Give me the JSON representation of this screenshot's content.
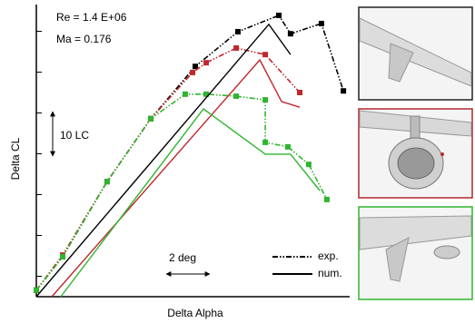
{
  "chart_data": {
    "type": "line",
    "x_label": "Delta Alpha",
    "y_label": "Delta CL",
    "annotations": [
      "Re = 1.4 E+06",
      "Ma = 0.176"
    ],
    "scale_bars": {
      "y": "10 LC",
      "x": "2 deg"
    },
    "xlim": [
      0,
      14.8
    ],
    "ylim": [
      0,
      70
    ],
    "yticks": [
      5,
      15,
      25,
      35,
      45,
      55,
      65
    ],
    "legend": [
      {
        "label": "exp.",
        "style": "exp"
      },
      {
        "label": "num.",
        "style": "num"
      }
    ],
    "series": [
      {
        "style": "exp",
        "color": "#000000",
        "marker": "square",
        "x": [
          0,
          1.26,
          3.39,
          5.48,
          7.61,
          9.65,
          11.61,
          12.17,
          13.65,
          14.7
        ],
        "values": [
          1.6,
          9.8,
          28.2,
          43.6,
          56.4,
          64.9,
          68.9,
          64.4,
          66.9,
          50.4
        ]
      },
      {
        "style": "exp",
        "color": "#c0282d",
        "marker": "square",
        "x": [
          0,
          1.26,
          3.39,
          5.48,
          7.48,
          8.13,
          9.57,
          10.96,
          12.61
        ],
        "values": [
          1.6,
          10.2,
          28.2,
          43.6,
          54.9,
          57.3,
          60.9,
          59.3,
          50
        ]
      },
      {
        "style": "exp",
        "color": "#2fb52f",
        "marker": "square",
        "x": [
          0,
          1.26,
          3.39,
          5.48,
          7.13,
          8.13,
          9.57,
          10.96,
          10.96,
          12.04,
          13.04,
          13.91
        ],
        "values": [
          1.6,
          9.8,
          28.2,
          43.6,
          49.6,
          49.6,
          49.1,
          48.2,
          37.8,
          36.7,
          32.4,
          23.8
        ]
      },
      {
        "style": "num",
        "color": "#000000",
        "x": [
          0,
          11.13,
          12.17
        ],
        "values": [
          0,
          66.7,
          59.3
        ]
      },
      {
        "style": "num",
        "color": "#c0282d",
        "x": [
          0.74,
          10.7,
          11.74,
          12.61
        ],
        "values": [
          0,
          58,
          47.8,
          46.4
        ]
      },
      {
        "style": "num",
        "color": "#2fb52f",
        "x": [
          1.17,
          8,
          10.96,
          12.17,
          13.57
        ],
        "values": [
          0,
          46,
          34.9,
          34.9,
          26
        ]
      }
    ]
  }
}
